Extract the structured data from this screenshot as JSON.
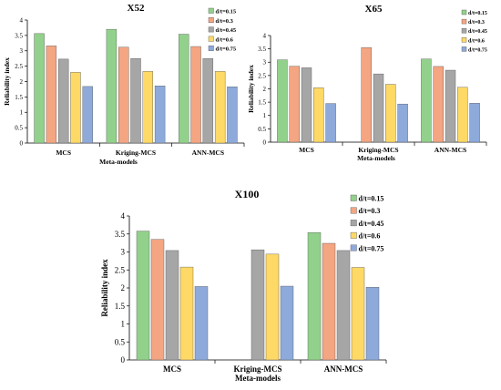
{
  "chart_data": [
    {
      "type": "bar",
      "title": "X52",
      "xlabel": "Meta-models",
      "ylabel": "Reliability index",
      "categories": [
        "MCS",
        "Kriging-MCS",
        "ANN-MCS"
      ],
      "ylim": [
        0,
        4
      ],
      "yticks": [
        "0",
        "0.5",
        "1",
        "1.5",
        "2",
        "2.5",
        "3",
        "3.5",
        "4"
      ],
      "legend_position": "top-right",
      "series": [
        {
          "name": "d/t=0.15",
          "color": "#92d18b",
          "values": [
            3.56,
            3.7,
            3.54
          ]
        },
        {
          "name": "d/t=0.3",
          "color": "#f4a582",
          "values": [
            3.16,
            3.12,
            3.14
          ]
        },
        {
          "name": "d/t=0.45",
          "color": "#a6a6a6",
          "values": [
            2.73,
            2.75,
            2.75
          ]
        },
        {
          "name": "d/t=0.6",
          "color": "#ffd966",
          "values": [
            2.3,
            2.33,
            2.33
          ]
        },
        {
          "name": "d/t=0.75",
          "color": "#8eaadb",
          "values": [
            1.84,
            1.86,
            1.83
          ]
        }
      ]
    },
    {
      "type": "bar",
      "title": "X65",
      "xlabel": "Meta-models",
      "ylabel": "Reliability index",
      "categories": [
        "MCS",
        "Kriging-MCS",
        "ANN-MCS"
      ],
      "ylim": [
        0,
        4
      ],
      "yticks": [
        "0",
        "0.5",
        "1",
        "1.5",
        "2",
        "2.5",
        "3",
        "3.5",
        "4"
      ],
      "legend_position": "top-right",
      "series": [
        {
          "name": "d/t=0.15",
          "color": "#92d18b",
          "values": [
            3.09,
            null,
            3.12
          ]
        },
        {
          "name": "d/t=0.3",
          "color": "#f4a582",
          "values": [
            2.85,
            3.55,
            2.84
          ]
        },
        {
          "name": "d/t=0.45",
          "color": "#a6a6a6",
          "values": [
            2.79,
            2.56,
            2.7
          ]
        },
        {
          "name": "d/t=0.6",
          "color": "#ffd966",
          "values": [
            2.04,
            2.17,
            2.06
          ]
        },
        {
          "name": "d/t=0.75",
          "color": "#8eaadb",
          "values": [
            1.45,
            1.43,
            1.46
          ]
        }
      ]
    },
    {
      "type": "bar",
      "title": "X100",
      "xlabel": "Meta-models",
      "ylabel": "Reliability index",
      "categories": [
        "MCS",
        "Kriging-MCS",
        "ANN-MCS"
      ],
      "ylim": [
        0,
        4
      ],
      "yticks": [
        "0",
        "0.5",
        "1",
        "1.5",
        "2",
        "2.5",
        "3",
        "3.5",
        "4"
      ],
      "legend_position": "top-right",
      "series": [
        {
          "name": "d/t=0.15",
          "color": "#92d18b",
          "values": [
            3.58,
            null,
            3.54
          ]
        },
        {
          "name": "d/t=0.3",
          "color": "#f4a582",
          "values": [
            3.35,
            null,
            3.24
          ]
        },
        {
          "name": "d/t=0.45",
          "color": "#a6a6a6",
          "values": [
            3.04,
            3.06,
            3.04
          ]
        },
        {
          "name": "d/t=0.6",
          "color": "#ffd966",
          "values": [
            2.58,
            2.94,
            2.57
          ]
        },
        {
          "name": "d/t=0.75",
          "color": "#8eaadb",
          "values": [
            2.04,
            2.05,
            2.02
          ]
        }
      ]
    }
  ]
}
